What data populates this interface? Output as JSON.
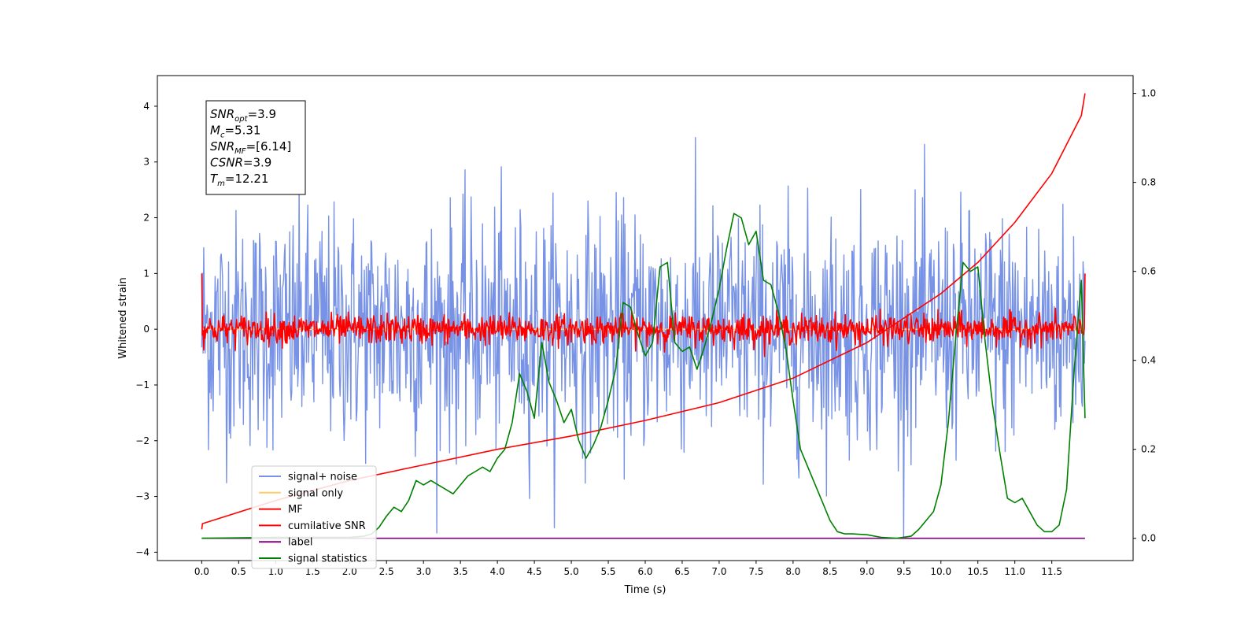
{
  "chart_data": {
    "type": "line",
    "xlabel": "Time (s)",
    "ylabel": "Whitened strain",
    "xlim": [
      -0.6,
      12.6
    ],
    "ylim": [
      -4.15,
      4.55
    ],
    "y2lim": [
      -0.05,
      1.04
    ],
    "x_ticks": [
      "0.0",
      "0.5",
      "1.0",
      "1.5",
      "2.0",
      "2.5",
      "3.0",
      "3.5",
      "4.0",
      "4.5",
      "5.0",
      "5.5",
      "6.0",
      "6.5",
      "7.0",
      "7.5",
      "8.0",
      "8.5",
      "9.0",
      "9.5",
      "10.0",
      "10.5",
      "11.0",
      "11.5"
    ],
    "y_ticks": [
      "4",
      "3",
      "2",
      "1",
      "0",
      "−1",
      "−2",
      "−3",
      "−4"
    ],
    "y2_ticks": [
      "1.0",
      "0.8",
      "0.6",
      "0.4",
      "0.2",
      "0.0"
    ],
    "annotation": [
      {
        "base": "SNR",
        "sub": "opt",
        "rest": "=3.9"
      },
      {
        "base": "M",
        "sub": "c",
        "rest": "=5.31"
      },
      {
        "base": "SNR",
        "sub": "MF",
        "rest": "=[6.14]"
      },
      {
        "base": "CSNR",
        "sub": "",
        "rest": "=3.9"
      },
      {
        "base": "T",
        "sub": "m",
        "rest": "=12.21"
      }
    ],
    "legend": [
      {
        "label": "signal+ noise",
        "color": "#7893e6"
      },
      {
        "label": "signal only",
        "color": "#ffcc66"
      },
      {
        "label": "MF",
        "color": "#ff0000"
      },
      {
        "label": "cumilative SNR",
        "color": "#ff0000"
      },
      {
        "label": "label",
        "color": "#800080"
      },
      {
        "label": "signal statistics",
        "color": "#008000"
      }
    ],
    "series": [
      {
        "name": "signal+ noise",
        "axis": "left",
        "color": "#7893e6",
        "kind": "noise",
        "t_range": [
          0,
          11.95
        ],
        "sigma": 1.05
      },
      {
        "name": "signal only",
        "axis": "left",
        "color": "#ffcc66",
        "kind": "flat",
        "t_range": [
          0,
          11.95
        ],
        "value": 0
      },
      {
        "name": "MF",
        "axis": "left",
        "color": "#ff0000",
        "kind": "noise",
        "t_range": [
          0,
          11.95
        ],
        "sigma": 0.13,
        "start_value": 1.0,
        "end_value": 1.0
      },
      {
        "name": "cumilative SNR",
        "axis": "right",
        "color": "#ff0000",
        "kind": "curve",
        "x": [
          0.0,
          0.01,
          1.0,
          2.0,
          3.0,
          4.0,
          5.0,
          6.0,
          7.0,
          8.0,
          9.0,
          10.0,
          10.5,
          11.0,
          11.5,
          11.9,
          11.95
        ],
        "y": [
          0.02,
          0.033,
          0.085,
          0.13,
          0.165,
          0.2,
          0.23,
          0.265,
          0.305,
          0.36,
          0.44,
          0.55,
          0.62,
          0.71,
          0.82,
          0.95,
          1.0
        ]
      },
      {
        "name": "label",
        "axis": "right",
        "color": "#800080",
        "kind": "curve",
        "x": [
          0,
          11.95
        ],
        "y": [
          0.0,
          0.0
        ]
      },
      {
        "name": "signal statistics",
        "axis": "right",
        "color": "#008000",
        "kind": "curve",
        "x": [
          0.0,
          1.0,
          2.0,
          2.2,
          2.3,
          2.4,
          2.5,
          2.6,
          2.7,
          2.8,
          2.9,
          3.0,
          3.1,
          3.2,
          3.3,
          3.4,
          3.5,
          3.6,
          3.7,
          3.8,
          3.9,
          4.0,
          4.1,
          4.2,
          4.3,
          4.4,
          4.5,
          4.6,
          4.7,
          4.8,
          4.9,
          5.0,
          5.1,
          5.2,
          5.3,
          5.4,
          5.5,
          5.6,
          5.7,
          5.8,
          5.9,
          6.0,
          6.1,
          6.2,
          6.3,
          6.4,
          6.5,
          6.6,
          6.7,
          6.8,
          6.9,
          7.0,
          7.1,
          7.2,
          7.3,
          7.4,
          7.5,
          7.6,
          7.7,
          7.8,
          7.9,
          8.0,
          8.1,
          8.2,
          8.3,
          8.4,
          8.5,
          8.6,
          8.7,
          8.8,
          9.0,
          9.2,
          9.4,
          9.6,
          9.7,
          9.8,
          9.9,
          10.0,
          10.1,
          10.2,
          10.3,
          10.4,
          10.5,
          10.6,
          10.7,
          10.8,
          10.9,
          11.0,
          11.1,
          11.2,
          11.3,
          11.4,
          11.5,
          11.6,
          11.7,
          11.8,
          11.9,
          11.95
        ],
        "y": [
          0.0,
          0.002,
          0.002,
          0.005,
          0.01,
          0.025,
          0.05,
          0.07,
          0.06,
          0.085,
          0.13,
          0.12,
          0.13,
          0.12,
          0.11,
          0.1,
          0.12,
          0.14,
          0.15,
          0.16,
          0.15,
          0.18,
          0.2,
          0.26,
          0.37,
          0.33,
          0.27,
          0.44,
          0.35,
          0.31,
          0.26,
          0.29,
          0.22,
          0.18,
          0.21,
          0.25,
          0.31,
          0.38,
          0.53,
          0.52,
          0.46,
          0.41,
          0.44,
          0.61,
          0.62,
          0.44,
          0.42,
          0.43,
          0.38,
          0.43,
          0.49,
          0.56,
          0.65,
          0.73,
          0.72,
          0.66,
          0.69,
          0.58,
          0.57,
          0.51,
          0.43,
          0.31,
          0.2,
          0.16,
          0.12,
          0.08,
          0.04,
          0.015,
          0.01,
          0.01,
          0.008,
          0.002,
          0.0,
          0.005,
          0.02,
          0.04,
          0.06,
          0.12,
          0.26,
          0.45,
          0.62,
          0.6,
          0.61,
          0.44,
          0.3,
          0.19,
          0.09,
          0.08,
          0.09,
          0.06,
          0.03,
          0.015,
          0.015,
          0.03,
          0.11,
          0.37,
          0.58,
          0.27
        ]
      }
    ]
  }
}
